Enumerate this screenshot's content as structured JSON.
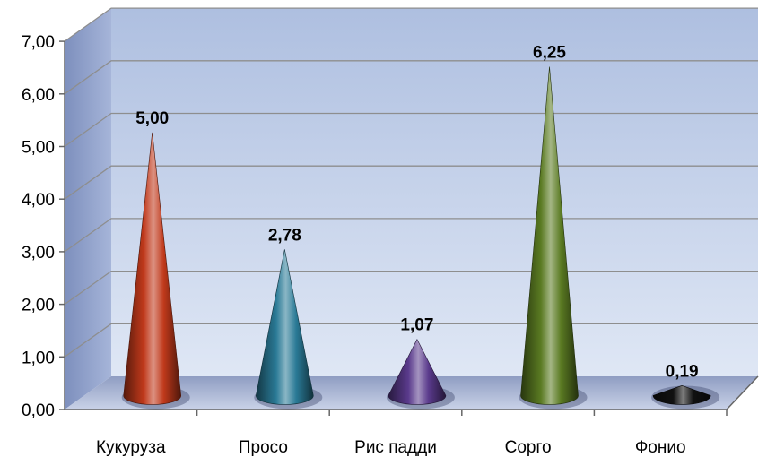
{
  "chart_data": {
    "type": "bar",
    "style": "3d-cone",
    "categories": [
      "Кукуруза",
      "Просо",
      "Рис падди",
      "Сорго",
      "Фонио"
    ],
    "values": [
      5.0,
      2.78,
      1.07,
      6.25,
      0.19
    ],
    "value_labels": [
      "5,00",
      "2,78",
      "1,07",
      "6,25",
      "0,19"
    ],
    "ylim": [
      0,
      7
    ],
    "yticks": [
      0,
      1,
      2,
      3,
      4,
      5,
      6,
      7
    ],
    "ytick_labels": [
      "0,00",
      "1,00",
      "2,00",
      "3,00",
      "4,00",
      "5,00",
      "6,00",
      "7,00"
    ],
    "colors": [
      "#c0391b",
      "#2a7a96",
      "#5a3a8c",
      "#5a7a22",
      "#111111"
    ],
    "grid": true,
    "title": "",
    "xlabel": "",
    "ylabel": ""
  }
}
